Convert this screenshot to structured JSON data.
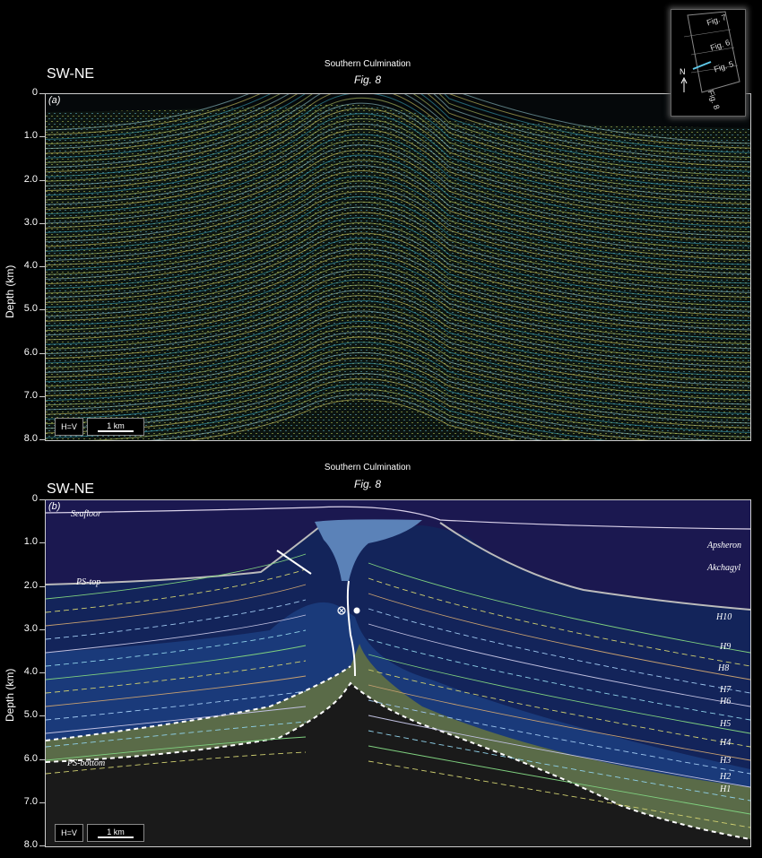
{
  "panel_a": {
    "direction": "SW-NE",
    "culmination": "Southern Culmination",
    "fig_ref": "Fig. 8",
    "label": "(a)",
    "y_axis_label": "Depth (km)",
    "y_ticks": [
      "0",
      "1.0",
      "2.0",
      "3.0",
      "4.0",
      "5.0",
      "6.0",
      "7.0",
      "8.0"
    ],
    "scale_ratio": "H=V",
    "scale_bar": "1 km"
  },
  "panel_b": {
    "direction": "SW-NE",
    "culmination": "Southern Culmination",
    "fig_ref": "Fig. 8",
    "label": "(b)",
    "y_axis_label": "Depth (km)",
    "y_ticks": [
      "0",
      "1.0",
      "2.0",
      "3.0",
      "4.0",
      "5.0",
      "6.0",
      "7.0",
      "8.0"
    ],
    "scale_ratio": "H=V",
    "scale_bar": "1 km",
    "horizons": {
      "seafloor": "Seafloor",
      "ps_top": "PS-top",
      "ps_bottom": "PS-bottom",
      "apsheron": "Apsheron",
      "akchagyl": "Akchagyl",
      "h10": "H10",
      "h9": "H9",
      "h8": "H8",
      "h7": "H7",
      "h6": "H6",
      "h5": "H5",
      "h4": "H4",
      "h3": "H3",
      "h2": "H2",
      "h1": "H1"
    },
    "colors": {
      "upper_unit": "#1b1850",
      "productive_series": "#13245a",
      "lower_unit": "#5a6b48",
      "basement": "#1a1a1a",
      "mud": "#5b82b8"
    }
  },
  "inset": {
    "north": "N",
    "figs": [
      "Fig. 7",
      "Fig. 6",
      "Fig. 5",
      "Fig. 8"
    ]
  }
}
